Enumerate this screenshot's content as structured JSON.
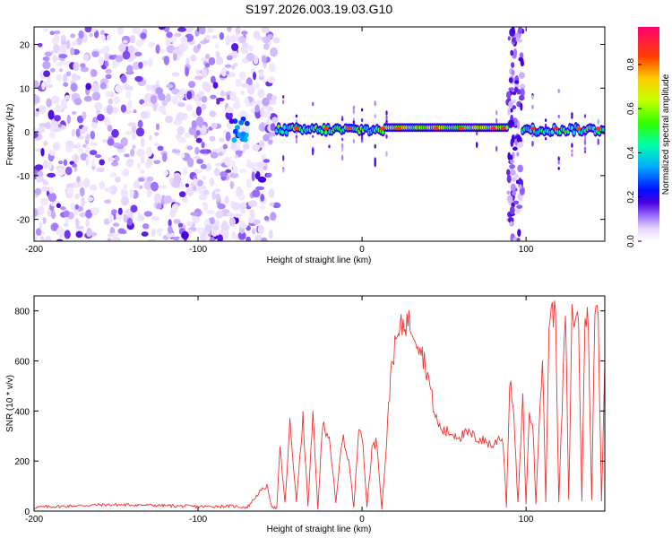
{
  "title": "S197.2026.003.19.03.G10",
  "chart_data": [
    {
      "type": "heatmap",
      "xlabel": "Height of straight line (km)",
      "ylabel": "Frequency (Hz)",
      "xlim": [
        -200,
        148
      ],
      "ylim": [
        -25,
        24
      ],
      "xticks": [
        -200,
        -100,
        0,
        100
      ],
      "yticks": [
        -20,
        -10,
        0,
        10,
        20
      ],
      "colorbar": {
        "label": "Normalized spectral amplitude",
        "range": [
          0,
          0.97
        ],
        "ticks": [
          0.0,
          0.2,
          0.4,
          0.6,
          0.8
        ],
        "colors": [
          "#ffffff",
          "#e8d8ff",
          "#a070ff",
          "#4b00e0",
          "#0000ff",
          "#00c8ff",
          "#00ff80",
          "#60ff00",
          "#ffff00",
          "#ff8000",
          "#ff0000",
          "#ff0080"
        ]
      },
      "regions": [
        {
          "name": "noise",
          "x": [
            -200,
            -52
          ],
          "amplitude": 0.1
        },
        {
          "name": "cluster",
          "x": [
            -80,
            -70
          ],
          "y": 0,
          "amplitude": 0.3
        },
        {
          "name": "trace",
          "x": [
            -52,
            148
          ],
          "y": 0.5,
          "amplitude": 0.55
        },
        {
          "name": "bright-trace",
          "x": [
            15,
            90
          ],
          "y": 1,
          "amplitude": 0.75
        },
        {
          "name": "vertical-noise",
          "x": [
            90,
            98
          ],
          "amplitude": 0.15
        }
      ]
    },
    {
      "type": "line",
      "xlabel": "Height of straight line (km)",
      "ylabel": "SNR (10 * v/v)",
      "xlim": [
        -200,
        148
      ],
      "ylim": [
        0,
        860
      ],
      "xticks": [
        -200,
        -100,
        0,
        100
      ],
      "yticks": [
        0,
        200,
        400,
        600,
        800
      ],
      "color": "#ee3333",
      "x": [
        -200,
        -180,
        -160,
        -140,
        -120,
        -100,
        -80,
        -70,
        -62,
        -58,
        -55,
        -52,
        -50,
        -47,
        -44,
        -40,
        -36,
        -33,
        -30,
        -27,
        -24,
        -20,
        -16,
        -12,
        -8,
        -5,
        -2,
        0,
        3,
        6,
        9,
        12,
        15,
        18,
        20,
        22,
        25,
        28,
        32,
        36,
        40,
        44,
        46,
        48,
        50,
        55,
        60,
        65,
        70,
        75,
        80,
        84,
        86,
        88,
        90,
        92,
        95,
        98,
        100,
        102,
        104,
        106,
        108,
        110,
        112,
        114,
        116,
        118,
        120,
        124,
        126,
        128,
        132,
        134,
        136,
        138,
        140,
        142,
        144,
        146,
        148
      ],
      "y": [
        15,
        20,
        25,
        25,
        22,
        18,
        20,
        15,
        80,
        100,
        20,
        10,
        250,
        30,
        350,
        40,
        370,
        20,
        380,
        10,
        350,
        300,
        30,
        300,
        200,
        10,
        350,
        300,
        20,
        250,
        280,
        10,
        280,
        600,
        650,
        700,
        750,
        760,
        720,
        650,
        550,
        400,
        350,
        330,
        320,
        310,
        300,
        310,
        290,
        280,
        260,
        300,
        280,
        20,
        500,
        450,
        30,
        440,
        30,
        400,
        350,
        30,
        380,
        600,
        40,
        750,
        800,
        780,
        40,
        800,
        40,
        780,
        760,
        40,
        800,
        750,
        40,
        820,
        780,
        40,
        600
      ]
    }
  ]
}
